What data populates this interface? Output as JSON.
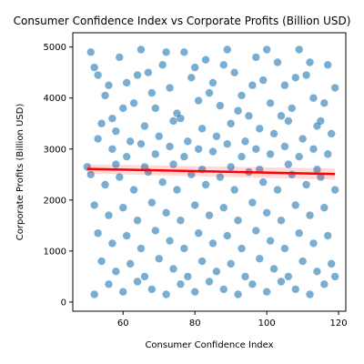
{
  "chart_data": {
    "type": "scatter",
    "title": "Consumer Confidence Index vs Corporate Profits (Billion USD)",
    "xlabel": "Consumer Confidence Index",
    "ylabel": "Corporate Profits (Billion USD)",
    "xlim": [
      46,
      122
    ],
    "ylim": [
      -180,
      5280
    ],
    "xticks": [
      60,
      80,
      100,
      120
    ],
    "yticks": [
      0,
      1000,
      2000,
      3000,
      4000,
      5000
    ],
    "grid": false,
    "legend": "none",
    "point_color": "#1f77b4",
    "trend_color": "#ff0000",
    "trend": {
      "x": [
        50,
        119
      ],
      "y": [
        2610,
        2510
      ]
    },
    "points": [
      [
        51,
        4900
      ],
      [
        53,
        4450
      ],
      [
        55,
        4050
      ],
      [
        57,
        3600
      ],
      [
        59,
        4800
      ],
      [
        61,
        4300
      ],
      [
        63,
        3900
      ],
      [
        65,
        4950
      ],
      [
        67,
        4500
      ],
      [
        69,
        3800
      ],
      [
        71,
        4650
      ],
      [
        73,
        4200
      ],
      [
        75,
        3700
      ],
      [
        77,
        4900
      ],
      [
        79,
        4400
      ],
      [
        81,
        3950
      ],
      [
        83,
        4750
      ],
      [
        85,
        4300
      ],
      [
        87,
        3850
      ],
      [
        89,
        4950
      ],
      [
        91,
        4500
      ],
      [
        93,
        4050
      ],
      [
        95,
        3650
      ],
      [
        97,
        4800
      ],
      [
        99,
        4350
      ],
      [
        101,
        3900
      ],
      [
        103,
        4700
      ],
      [
        105,
        4250
      ],
      [
        107,
        3800
      ],
      [
        109,
        4950
      ],
      [
        111,
        4450
      ],
      [
        113,
        4000
      ],
      [
        115,
        3550
      ],
      [
        117,
        4650
      ],
      [
        119,
        4200
      ],
      [
        52,
        4600
      ],
      [
        56,
        4250
      ],
      [
        60,
        3800
      ],
      [
        64,
        4450
      ],
      [
        68,
        4100
      ],
      [
        72,
        4900
      ],
      [
        76,
        3600
      ],
      [
        80,
        4600
      ],
      [
        84,
        4100
      ],
      [
        88,
        4650
      ],
      [
        92,
        3750
      ],
      [
        96,
        4250
      ],
      [
        100,
        4950
      ],
      [
        104,
        3650
      ],
      [
        108,
        4400
      ],
      [
        112,
        4700
      ],
      [
        116,
        3900
      ],
      [
        54,
        3500
      ],
      [
        58,
        3350
      ],
      [
        62,
        3150
      ],
      [
        66,
        3450
      ],
      [
        70,
        3250
      ],
      [
        74,
        3550
      ],
      [
        78,
        3150
      ],
      [
        82,
        3400
      ],
      [
        86,
        3250
      ],
      [
        90,
        3500
      ],
      [
        94,
        3150
      ],
      [
        98,
        3400
      ],
      [
        102,
        3300
      ],
      [
        106,
        3550
      ],
      [
        110,
        3200
      ],
      [
        114,
        3450
      ],
      [
        118,
        3300
      ],
      [
        53,
        3200
      ],
      [
        57,
        3000
      ],
      [
        61,
        2850
      ],
      [
        65,
        3100
      ],
      [
        69,
        2900
      ],
      [
        73,
        3050
      ],
      [
        77,
        2850
      ],
      [
        81,
        3000
      ],
      [
        85,
        2950
      ],
      [
        89,
        3100
      ],
      [
        93,
        2850
      ],
      [
        97,
        3000
      ],
      [
        101,
        2900
      ],
      [
        105,
        3050
      ],
      [
        109,
        2850
      ],
      [
        113,
        3000
      ],
      [
        117,
        2900
      ],
      [
        51,
        2500
      ],
      [
        55,
        2300
      ],
      [
        59,
        2450
      ],
      [
        63,
        2200
      ],
      [
        67,
        2550
      ],
      [
        71,
        2350
      ],
      [
        75,
        2200
      ],
      [
        79,
        2500
      ],
      [
        83,
        2300
      ],
      [
        87,
        2450
      ],
      [
        91,
        2200
      ],
      [
        95,
        2550
      ],
      [
        99,
        2350
      ],
      [
        103,
        2200
      ],
      [
        107,
        2500
      ],
      [
        111,
        2300
      ],
      [
        115,
        2450
      ],
      [
        119,
        2200
      ],
      [
        52,
        1900
      ],
      [
        56,
        1700
      ],
      [
        60,
        1850
      ],
      [
        64,
        1600
      ],
      [
        68,
        1950
      ],
      [
        72,
        1750
      ],
      [
        76,
        1600
      ],
      [
        80,
        1900
      ],
      [
        84,
        1700
      ],
      [
        88,
        1850
      ],
      [
        92,
        1600
      ],
      [
        96,
        1950
      ],
      [
        100,
        1750
      ],
      [
        104,
        1600
      ],
      [
        108,
        1900
      ],
      [
        112,
        1700
      ],
      [
        116,
        1850
      ],
      [
        53,
        1350
      ],
      [
        57,
        1150
      ],
      [
        61,
        1300
      ],
      [
        65,
        1050
      ],
      [
        69,
        1400
      ],
      [
        73,
        1200
      ],
      [
        77,
        1050
      ],
      [
        81,
        1350
      ],
      [
        85,
        1150
      ],
      [
        89,
        1300
      ],
      [
        93,
        1050
      ],
      [
        97,
        1400
      ],
      [
        101,
        1200
      ],
      [
        105,
        1050
      ],
      [
        109,
        1350
      ],
      [
        113,
        1150
      ],
      [
        117,
        1300
      ],
      [
        54,
        800
      ],
      [
        58,
        600
      ],
      [
        62,
        750
      ],
      [
        66,
        500
      ],
      [
        70,
        850
      ],
      [
        74,
        650
      ],
      [
        78,
        500
      ],
      [
        82,
        800
      ],
      [
        86,
        600
      ],
      [
        90,
        750
      ],
      [
        94,
        500
      ],
      [
        98,
        850
      ],
      [
        102,
        650
      ],
      [
        106,
        500
      ],
      [
        110,
        800
      ],
      [
        114,
        600
      ],
      [
        118,
        750
      ],
      [
        52,
        150
      ],
      [
        56,
        350
      ],
      [
        60,
        200
      ],
      [
        64,
        400
      ],
      [
        68,
        250
      ],
      [
        72,
        150
      ],
      [
        76,
        350
      ],
      [
        80,
        200
      ],
      [
        84,
        400
      ],
      [
        88,
        250
      ],
      [
        92,
        150
      ],
      [
        96,
        350
      ],
      [
        100,
        200
      ],
      [
        104,
        400
      ],
      [
        108,
        250
      ],
      [
        112,
        150
      ],
      [
        116,
        350
      ],
      [
        119,
        500
      ],
      [
        50,
        2650
      ],
      [
        58,
        2700
      ],
      [
        66,
        2650
      ],
      [
        74,
        2700
      ],
      [
        82,
        2600
      ],
      [
        90,
        2650
      ],
      [
        98,
        2600
      ],
      [
        106,
        2700
      ],
      [
        114,
        2600
      ]
    ]
  }
}
